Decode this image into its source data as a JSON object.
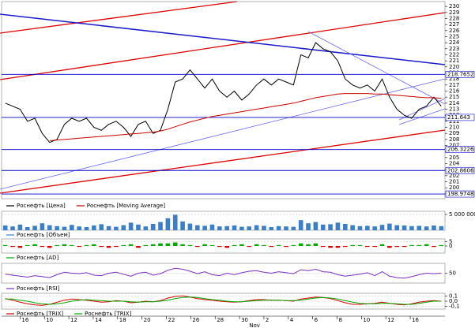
{
  "chart_data": [
    {
      "type": "line",
      "series": [
        {
          "name": "Роснефть [Цена]",
          "color": "#000000",
          "values": [
            214,
            213.5,
            213,
            211,
            211.5,
            209,
            207.5,
            208,
            210.5,
            211.5,
            211,
            211.5,
            210,
            209.5,
            210.5,
            211,
            210,
            208.5,
            210.5,
            211,
            209,
            209.5,
            213,
            217.5,
            218,
            219.5,
            218,
            216.5,
            218,
            216,
            215,
            216,
            214.5,
            215.5,
            217,
            218,
            217,
            218,
            217.5,
            217,
            222,
            221.5,
            224,
            223,
            222.5,
            221,
            218,
            217,
            216.5,
            217,
            216,
            218,
            215,
            213,
            212,
            211.5,
            213,
            213.5,
            215,
            213.5
          ]
        },
        {
          "name": "Роснефть [Moving Average]",
          "color": "#cc0000",
          "values": [
            null,
            null,
            null,
            null,
            null,
            null,
            207.8,
            207.9,
            208.0,
            208.1,
            208.2,
            208.3,
            208.4,
            208.5,
            208.6,
            208.7,
            208.8,
            208.9,
            209.0,
            209.1,
            209.2,
            209.4,
            209.7,
            210.1,
            210.5,
            210.9,
            211.2,
            211.5,
            211.8,
            212.0,
            212.2,
            212.4,
            212.6,
            212.8,
            213.0,
            213.2,
            213.4,
            213.6,
            213.8,
            214.0,
            214.3,
            214.6,
            214.9,
            215.1,
            215.3,
            215.5,
            215.6,
            215.6,
            215.6,
            215.6,
            215.5,
            215.5,
            215.4,
            215.3,
            215.2,
            215.1,
            215.0,
            214.9,
            214.9,
            214.8
          ]
        }
      ],
      "xlim": [
        -0.5,
        59.5
      ],
      "ylim": [
        198.2,
        230.8
      ],
      "yticks": [
        199,
        200,
        201,
        202,
        203,
        204,
        205,
        206,
        207,
        208,
        209,
        210,
        211,
        212,
        213,
        214,
        215,
        216,
        217,
        218,
        219,
        220,
        221,
        222,
        223,
        224,
        225,
        226,
        227,
        228,
        229,
        230
      ],
      "levels": [
        218.7652,
        211.643,
        206.3226,
        202.8606,
        198.9748
      ],
      "level_color": "#0000cc"
    },
    {
      "type": "bar",
      "series": [
        {
          "name": "Роснефть [Объем]",
          "color": "#3a7fc8",
          "values": [
            1500000,
            1200000,
            1800000,
            1000000,
            1400000,
            2200000,
            1600000,
            1300000,
            1100000,
            1700000,
            1200000,
            1000000,
            1500000,
            1900000,
            1300000,
            1100000,
            1600000,
            2400000,
            1800000,
            1200000,
            2000000,
            2600000,
            3800000,
            4900000,
            2800000,
            2100000,
            1600000,
            1400000,
            1800000,
            1200000,
            1300000,
            1500000,
            1100000,
            1200000,
            1600000,
            1400000,
            1000000,
            1300000,
            1200000,
            1100000,
            3200000,
            2200000,
            2600000,
            1800000,
            1900000,
            2400000,
            2000000,
            1600000,
            1300000,
            1400000,
            1200000,
            1700000,
            2100000,
            1600000,
            1500000,
            1300000,
            1400000,
            1200000,
            1500000,
            1300000
          ]
        }
      ],
      "ylim": [
        0,
        6000000
      ],
      "yticks": [
        {
          "value": 5000000,
          "label": "5 000 000"
        }
      ]
    },
    {
      "type": "bar",
      "series": [
        {
          "name": "Роснефть [AD]",
          "color": "#00aa00",
          "negative_color": "#dd0000",
          "values": [
            1,
            -1,
            -2,
            1,
            2,
            -1,
            -2,
            1,
            2,
            1,
            -1,
            1,
            2,
            -1,
            -2,
            -1,
            1,
            2,
            -2,
            1,
            2,
            3,
            3,
            4,
            2,
            1,
            -1,
            2,
            1,
            -1,
            -2,
            1,
            2,
            -1,
            2,
            1,
            -1,
            1,
            -1,
            1,
            3,
            2,
            3,
            -1,
            -2,
            -2,
            -1,
            1,
            1,
            -1,
            -1,
            2,
            -2,
            -1,
            -1,
            1,
            1,
            2,
            -1,
            1
          ]
        }
      ],
      "ylim": [
        -8,
        8
      ],
      "yticks": [
        5,
        0
      ]
    },
    {
      "type": "line",
      "series": [
        {
          "name": "Роснефть [RSI]",
          "color": "#7b2fbf",
          "values": [
            48,
            46,
            44,
            42,
            45,
            43,
            41,
            47,
            52,
            50,
            49,
            51,
            46,
            45,
            50,
            52,
            48,
            44,
            50,
            52,
            46,
            49,
            56,
            60,
            58,
            54,
            49,
            53,
            47,
            45,
            50,
            47,
            51,
            54,
            55,
            52,
            50,
            53,
            51,
            49,
            57,
            55,
            58,
            53,
            52,
            47,
            44,
            46,
            48,
            51,
            45,
            53,
            44,
            41,
            40,
            43,
            47,
            50,
            49,
            50
          ]
        }
      ],
      "ylim": [
        30,
        70
      ],
      "yticks": [
        50
      ]
    },
    {
      "type": "line",
      "series": [
        {
          "name": "Роснефть [TRIX]",
          "color": "#dd0000",
          "values": [
            0.05,
            0.02,
            -0.02,
            -0.05,
            -0.07,
            -0.08,
            -0.06,
            -0.02,
            0.02,
            0.04,
            0.03,
            0.02,
            0.0,
            -0.02,
            -0.01,
            0.01,
            0.0,
            -0.03,
            -0.02,
            0.0,
            -0.01,
            0.01,
            0.06,
            0.09,
            0.1,
            0.08,
            0.05,
            0.03,
            0.02,
            0.0,
            -0.01,
            -0.02,
            -0.01,
            0.01,
            0.03,
            0.03,
            0.02,
            0.02,
            0.01,
            0.0,
            0.04,
            0.06,
            0.08,
            0.07,
            0.05,
            0.01,
            -0.03,
            -0.06,
            -0.06,
            -0.05,
            -0.04,
            -0.02,
            -0.04,
            -0.06,
            -0.07,
            -0.05,
            -0.02,
            0.0,
            0.01,
            0.0
          ]
        },
        {
          "name": "Роснефть [TRIX]",
          "color": "#00aa00",
          "values": [
            0.04,
            0.04,
            0.02,
            0.0,
            -0.03,
            -0.05,
            -0.06,
            -0.05,
            -0.03,
            0.0,
            0.02,
            0.03,
            0.02,
            0.01,
            0.0,
            0.0,
            0.0,
            -0.01,
            -0.02,
            -0.01,
            -0.01,
            0.0,
            0.02,
            0.05,
            0.07,
            0.08,
            0.07,
            0.05,
            0.03,
            0.02,
            0.0,
            -0.01,
            -0.01,
            0.0,
            0.01,
            0.02,
            0.02,
            0.02,
            0.01,
            0.01,
            0.02,
            0.04,
            0.06,
            0.07,
            0.06,
            0.04,
            0.01,
            -0.02,
            -0.04,
            -0.05,
            -0.05,
            -0.04,
            -0.04,
            -0.05,
            -0.06,
            -0.06,
            -0.04,
            -0.02,
            0.0,
            0.0
          ]
        }
      ],
      "ylim": [
        -0.15,
        0.15
      ],
      "yticks": [
        {
          "value": 0.1,
          "label": "0,1"
        },
        {
          "value": 0,
          "label": "0,0"
        },
        {
          "value": -0.1,
          "label": "-0,1"
        }
      ],
      "xticks": [
        {
          "value": 2,
          "label": "16"
        },
        {
          "value": 5.3,
          "label": "10"
        },
        {
          "value": 8.6,
          "label": "12"
        },
        {
          "value": 11.9,
          "label": "14"
        },
        {
          "value": 15.2,
          "label": "18"
        },
        {
          "value": 18.5,
          "label": "20"
        },
        {
          "value": 21.8,
          "label": "22"
        },
        {
          "value": 25.1,
          "label": "26"
        },
        {
          "value": 28.4,
          "label": "28"
        },
        {
          "value": 31.7,
          "label": "30"
        },
        {
          "value": 35,
          "label": "2"
        },
        {
          "value": 38.3,
          "label": "4"
        },
        {
          "value": 41.6,
          "label": "6"
        },
        {
          "value": 44.9,
          "label": "8"
        },
        {
          "value": 48.2,
          "label": "10"
        },
        {
          "value": 51.5,
          "label": "12"
        },
        {
          "value": 54.8,
          "label": "16"
        }
      ],
      "xlabel": "Nov"
    }
  ]
}
